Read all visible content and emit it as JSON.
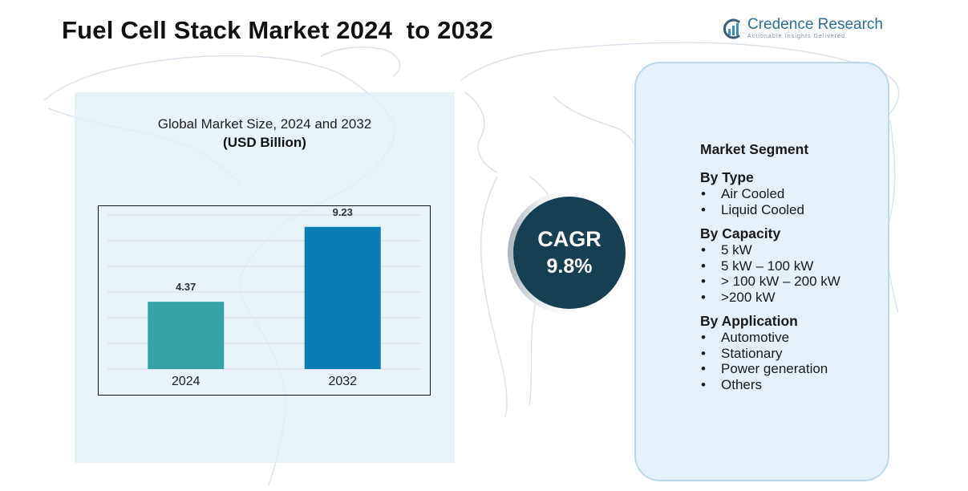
{
  "title": "Fuel Cell Stack Market 2024  to 2032",
  "logo": {
    "name": "Credence Research",
    "tagline": "Actionable Insights Delivered"
  },
  "chart_data": {
    "type": "bar",
    "title": "Global Market Size, 2024 and 2032",
    "subtitle": "(USD Billion)",
    "categories": [
      "2024",
      "2032"
    ],
    "values": [
      4.37,
      9.23
    ],
    "value_labels": [
      "4.37",
      "9.23"
    ],
    "colors": [
      "#36a3a6",
      "#0b7db5"
    ],
    "ylim": [
      0,
      10
    ],
    "grid": true,
    "xlabel": "",
    "ylabel": ""
  },
  "cagr": {
    "label": "CAGR",
    "value": "9.8%"
  },
  "segments": {
    "heading": "Market Segment",
    "groups": [
      {
        "title": "By Type",
        "items": [
          "Air Cooled",
          "Liquid Cooled"
        ]
      },
      {
        "title": "By Capacity",
        "items": [
          "5 kW",
          "5 kW – 100 kW",
          "> 100 kW – 200 kW",
          ">200 kW"
        ]
      },
      {
        "title": "By Application",
        "items": [
          "Automotive",
          "Stationary",
          "Power generation",
          "Others"
        ]
      }
    ]
  },
  "colors": {
    "panel_bg": "#e2eef7",
    "cagr_circle": "#173f54",
    "panel_border": "#bcd9ea"
  }
}
